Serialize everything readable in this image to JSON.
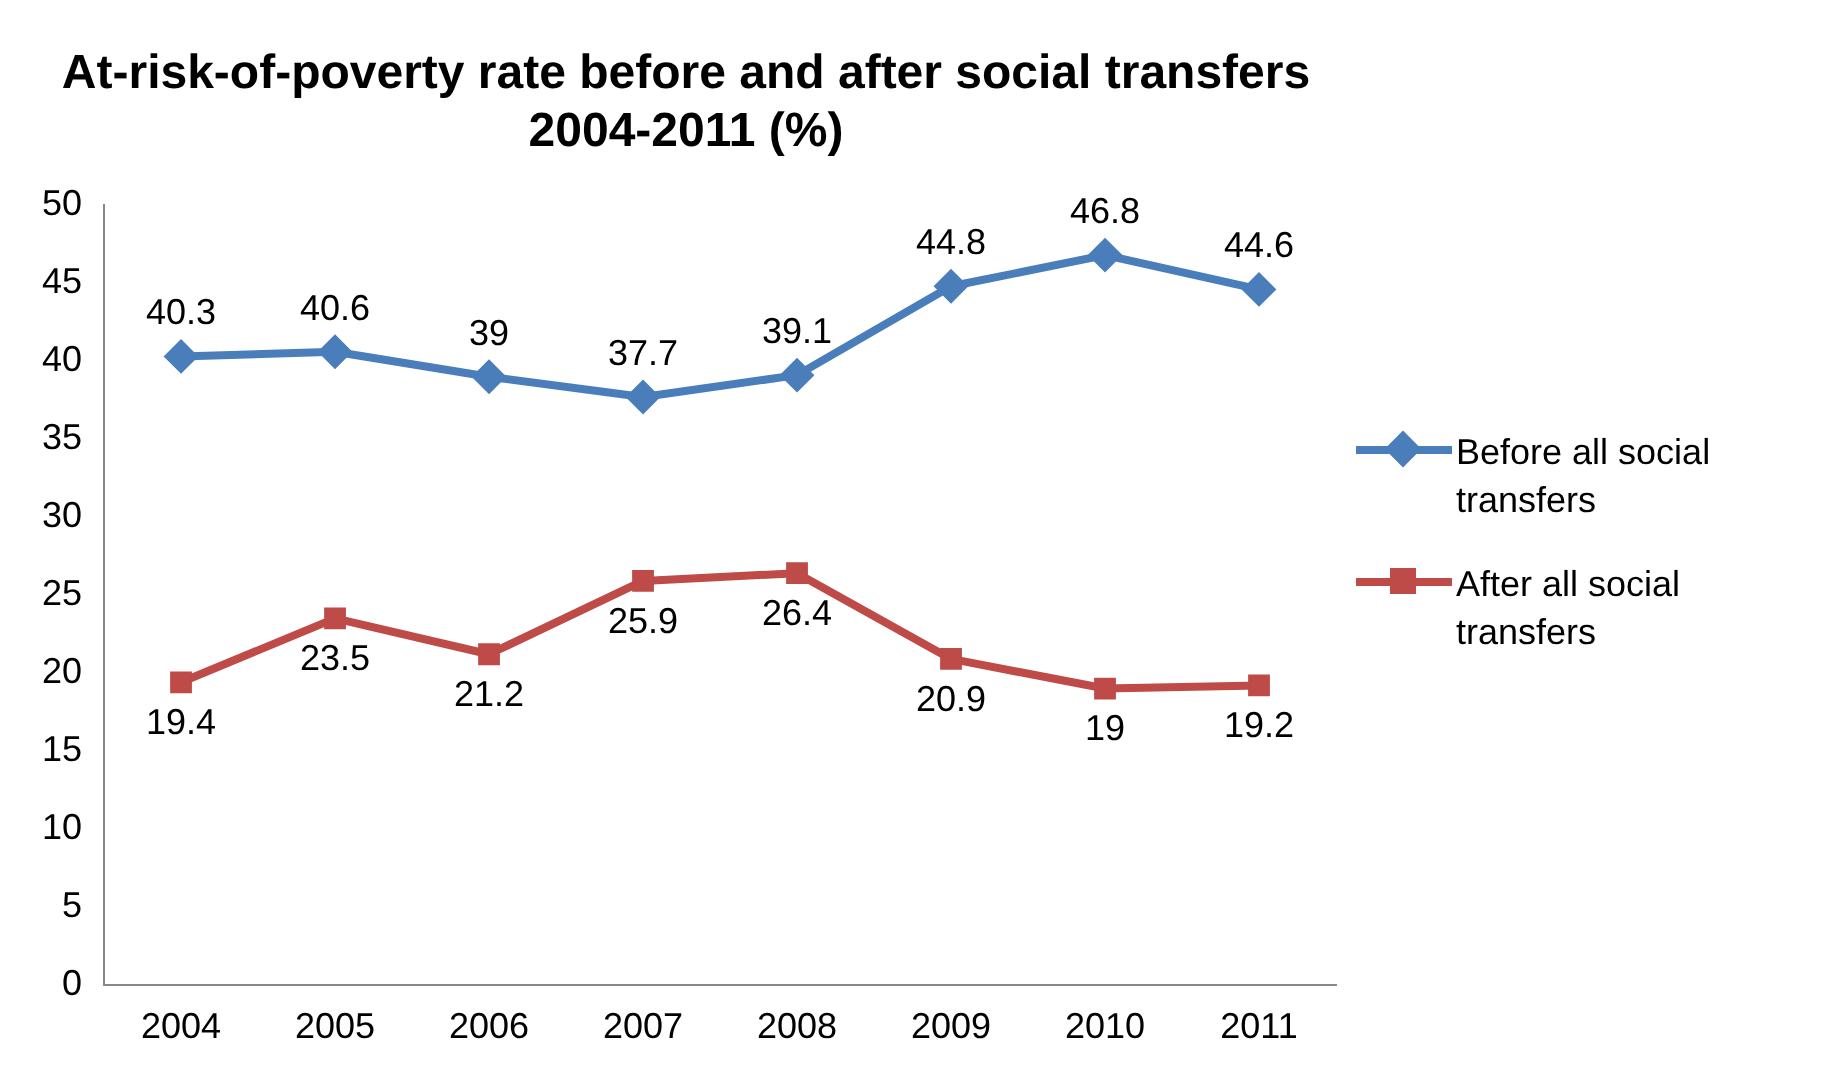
{
  "chart_data": {
    "type": "line",
    "title": "At-risk-of-poverty rate before and after social transfers 2004-2011 (%)",
    "categories": [
      "2004",
      "2005",
      "2006",
      "2007",
      "2008",
      "2009",
      "2010",
      "2011"
    ],
    "series": [
      {
        "name": "Before all social transfers",
        "color": "#4a7ebb",
        "marker": "diamond",
        "values": [
          40.3,
          40.6,
          39,
          37.7,
          39.1,
          44.8,
          46.8,
          44.6
        ]
      },
      {
        "name": "After all social transfers",
        "color": "#be4b48",
        "marker": "square",
        "values": [
          19.4,
          23.5,
          21.2,
          25.9,
          26.4,
          20.9,
          19,
          19.2
        ]
      }
    ],
    "ylim": [
      0,
      50
    ],
    "yticks": [
      0,
      5,
      10,
      15,
      20,
      25,
      30,
      35,
      40,
      45,
      50
    ],
    "grid": false,
    "legend": "right",
    "data_labels": true
  }
}
